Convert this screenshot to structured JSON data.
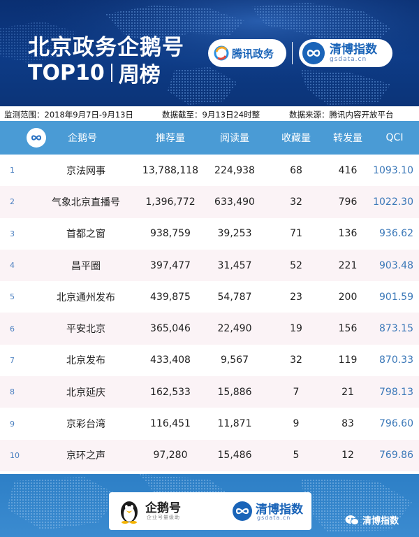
{
  "header": {
    "title_line1": "北京政务企鹅号",
    "title_line2_left": "TOP10",
    "title_line2_right": "周榜",
    "tencent_logo_text": "腾讯政务",
    "qingbo_logo_text": "清博指数",
    "qingbo_logo_sub": "gsdata.cn"
  },
  "info": {
    "range": "监测范围：2018年9月7日-9月13日",
    "cutoff": "数据截至：9月13日24时整",
    "source": "数据来源：腾讯内容开放平台"
  },
  "table": {
    "columns": [
      "",
      "企鹅号",
      "推荐量",
      "阅读量",
      "收藏量",
      "转发量",
      "QCI"
    ],
    "rows": [
      {
        "rank": "1",
        "name": "京法网事",
        "recommend": "13,788,118",
        "read": "224,938",
        "fav": "68",
        "forward": "416",
        "qci": "1093.10"
      },
      {
        "rank": "2",
        "name": "气象北京直播号",
        "recommend": "1,396,772",
        "read": "633,490",
        "fav": "32",
        "forward": "796",
        "qci": "1022.30"
      },
      {
        "rank": "3",
        "name": "首都之窗",
        "recommend": "938,759",
        "read": "39,253",
        "fav": "71",
        "forward": "136",
        "qci": "936.62"
      },
      {
        "rank": "4",
        "name": "昌平圈",
        "recommend": "397,477",
        "read": "31,457",
        "fav": "52",
        "forward": "221",
        "qci": "903.48"
      },
      {
        "rank": "5",
        "name": "北京通州发布",
        "recommend": "439,875",
        "read": "54,787",
        "fav": "23",
        "forward": "200",
        "qci": "901.59"
      },
      {
        "rank": "6",
        "name": "平安北京",
        "recommend": "365,046",
        "read": "22,490",
        "fav": "19",
        "forward": "156",
        "qci": "873.15"
      },
      {
        "rank": "7",
        "name": "北京发布",
        "recommend": "433,408",
        "read": "9,567",
        "fav": "32",
        "forward": "119",
        "qci": "870.33"
      },
      {
        "rank": "8",
        "name": "北京延庆",
        "recommend": "162,533",
        "read": "15,886",
        "fav": "7",
        "forward": "21",
        "qci": "798.13"
      },
      {
        "rank": "9",
        "name": "京彩台湾",
        "recommend": "116,451",
        "read": "11,871",
        "fav": "9",
        "forward": "83",
        "qci": "796.60"
      },
      {
        "rank": "10",
        "name": "京环之声",
        "recommend": "97,280",
        "read": "15,486",
        "fav": "5",
        "forward": "12",
        "qci": "769.86"
      }
    ]
  },
  "footer": {
    "penguin_brand": "企鹅号",
    "penguin_sub": "企业号量级助",
    "qingbo_text": "清博指数",
    "qingbo_sub": "gsdata.cn",
    "wechat_label": "清博指数"
  },
  "colors": {
    "header_bg": "#0c3478",
    "table_header_bg": "#4a9bd5",
    "qci_text": "#3b78b8",
    "row_alt": "#fbf3f6",
    "footer_bg": "#3b8bd0"
  }
}
